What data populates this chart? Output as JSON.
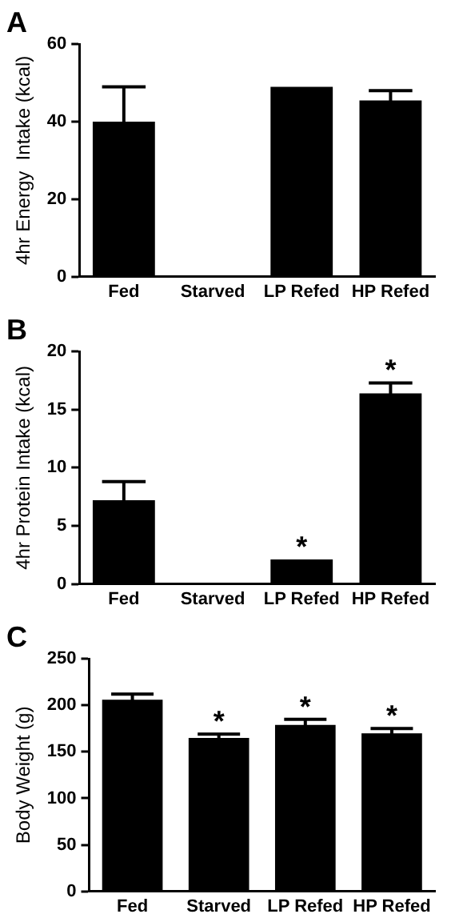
{
  "chart_data": [
    {
      "type": "bar",
      "title": "A",
      "ylabel": "4hr Energy  Intake (kcal)",
      "categories": [
        "Fed",
        "Starved",
        "LP Refed",
        "HP Refed"
      ],
      "values": [
        40,
        0,
        49,
        45.5
      ],
      "errors": [
        9,
        null,
        null,
        2.5
      ],
      "color": "#000000",
      "ylim": [
        0,
        60
      ],
      "yticks": [
        0,
        20,
        40,
        60
      ],
      "grid": false,
      "legend": false
    },
    {
      "type": "bar",
      "title": "B",
      "ylabel": "4hr Protein Intake (kcal)",
      "categories": [
        "Fed",
        "Starved",
        "LP Refed",
        "HP Refed"
      ],
      "values": [
        7.2,
        0,
        2.1,
        16.4
      ],
      "errors": [
        1.6,
        null,
        null,
        0.9
      ],
      "color": "#000000",
      "ylim": [
        0,
        20
      ],
      "yticks": [
        0,
        5,
        10,
        15,
        20
      ],
      "grid": false,
      "legend": false,
      "annotations": [
        {
          "text": "*",
          "x": "LP Refed",
          "y": 2.1
        },
        {
          "text": "*",
          "x": "HP Refed",
          "y": 17.3
        }
      ]
    },
    {
      "type": "bar",
      "title": "C",
      "ylabel": "Body Weight (g)",
      "categories": [
        "Fed",
        "Starved",
        "LP Refed",
        "HP Refed"
      ],
      "values": [
        206,
        165,
        179,
        170
      ],
      "errors": [
        6,
        4,
        6,
        5
      ],
      "color": "#000000",
      "ylim": [
        0,
        250
      ],
      "yticks": [
        0,
        50,
        100,
        150,
        200,
        250
      ],
      "grid": false,
      "legend": false,
      "annotations": [
        {
          "text": "*",
          "x": "Starved",
          "y": 169
        },
        {
          "text": "*",
          "x": "LP Refed",
          "y": 185
        },
        {
          "text": "*",
          "x": "HP Refed",
          "y": 175
        }
      ]
    }
  ]
}
